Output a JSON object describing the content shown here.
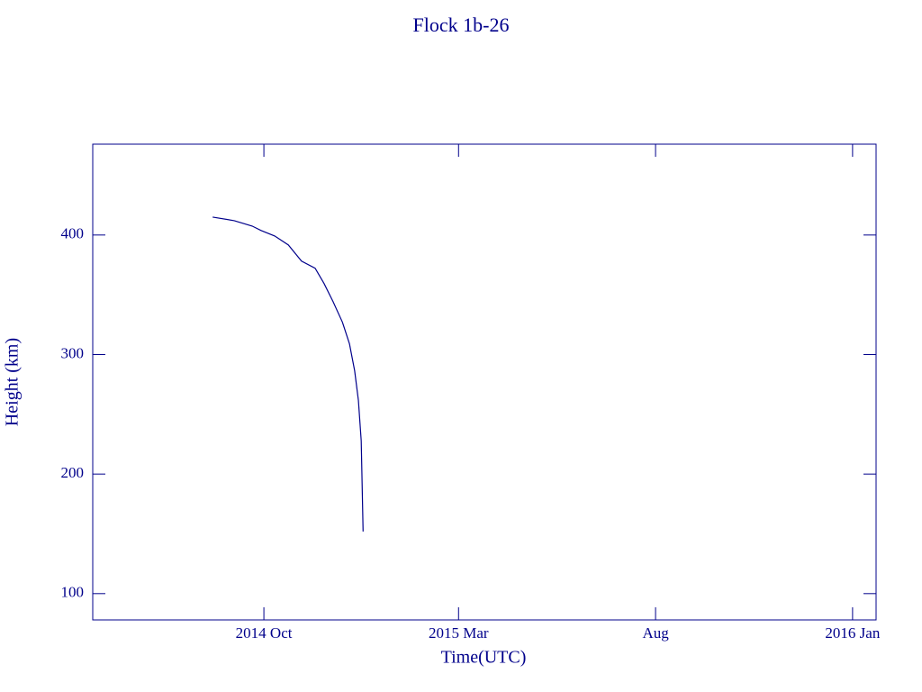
{
  "chart_data": {
    "type": "line",
    "title": "Flock 1b-26",
    "x_label": "Time(UTC)",
    "y_label": "Height (km)",
    "x": [
      2014.639,
      2014.685,
      2014.723,
      2014.742,
      2014.771,
      2014.8,
      2014.828,
      2014.857,
      2014.876,
      2014.895,
      2014.915,
      2014.93,
      2014.941,
      2014.949,
      2014.955,
      2014.957,
      2014.959
    ],
    "series": [
      {
        "color": "#00008b",
        "values": [
          415,
          412,
          407.5,
          403.8,
          399.2,
          391.7,
          378.2,
          372.2,
          359.4,
          344.4,
          327.1,
          309,
          286.5,
          261.7,
          227.8,
          190.2,
          152
        ]
      }
    ],
    "xlim": [
      2014.384,
      2016.05
    ],
    "xticks": [
      {
        "value": 2014.748,
        "label": "2014 Oct"
      },
      {
        "value": 2015.162,
        "label": "2015 Mar"
      },
      {
        "value": 2015.581,
        "label": "Aug"
      },
      {
        "value": 2016.0,
        "label": "2016 Jan"
      }
    ],
    "ylim": [
      78,
      476
    ],
    "yticks": [
      100,
      200,
      300,
      400
    ]
  }
}
